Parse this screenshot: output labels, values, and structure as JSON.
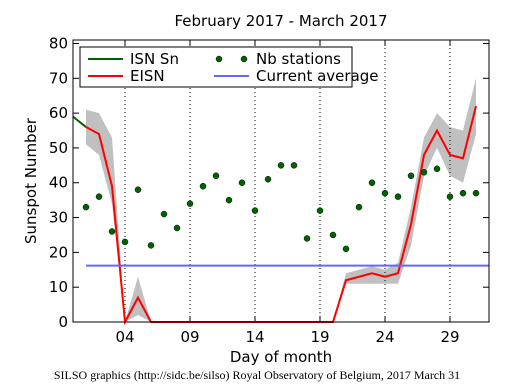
{
  "chart_data": {
    "type": "line",
    "title": "February 2017 - March 2017",
    "x_label": "Day of month",
    "y_label": "Sunspot Number",
    "footer": "SILSO graphics (http://sidc.be/silso) Royal Observatory of Belgium, 2017 March 31",
    "xlim": [
      0,
      32
    ],
    "ylim": [
      0,
      81
    ],
    "xticks": [
      {
        "value": 4,
        "label": "04"
      },
      {
        "value": 9,
        "label": "09"
      },
      14,
      19,
      24,
      29
    ],
    "yticks": [
      0,
      10,
      20,
      30,
      40,
      50,
      60,
      70,
      80
    ],
    "grid": "x",
    "legend": "upper left",
    "band": {
      "color": "#c0c0c0",
      "x": [
        1,
        2,
        3,
        4,
        5,
        6,
        7,
        8,
        9,
        10,
        11,
        12,
        13,
        14,
        15,
        16,
        17,
        18,
        19,
        20,
        21,
        22,
        23,
        24,
        25,
        26,
        27,
        28,
        29,
        30,
        31
      ],
      "low": [
        51,
        48,
        34,
        0,
        2,
        0,
        0,
        0,
        0,
        0,
        0,
        0,
        0,
        0,
        0,
        0,
        0,
        0,
        0,
        0,
        11,
        11,
        11,
        11,
        11,
        22,
        42,
        50,
        42,
        40,
        54
      ],
      "high": [
        61,
        60,
        53,
        0,
        13,
        0,
        0,
        0,
        0,
        0,
        0,
        0,
        0,
        0,
        0,
        0,
        0,
        0,
        0,
        0,
        14,
        15,
        16,
        15,
        17,
        33,
        53,
        60,
        56,
        55,
        70
      ]
    },
    "series": [
      {
        "name": "ISN Sn",
        "color": "#006400",
        "style": "line",
        "x": [
          0,
          1
        ],
        "values": [
          59,
          56
        ]
      },
      {
        "name": "EISN",
        "color": "#ff0000",
        "style": "line",
        "x": [
          1,
          2,
          3,
          4,
          5,
          6,
          7,
          8,
          9,
          10,
          11,
          12,
          13,
          14,
          15,
          16,
          17,
          18,
          19,
          20,
          21,
          22,
          23,
          24,
          25,
          26,
          27,
          28,
          29,
          30,
          31
        ],
        "values": [
          56,
          54,
          39,
          0,
          7,
          0,
          0,
          0,
          0,
          0,
          0,
          0,
          0,
          0,
          0,
          0,
          0,
          0,
          0,
          0,
          12,
          13,
          14,
          13,
          14,
          28,
          48,
          55,
          48,
          47,
          62
        ]
      },
      {
        "name": "Nb stations",
        "color": "#006400",
        "style": "dots",
        "x": [
          1,
          2,
          3,
          4,
          5,
          6,
          7,
          8,
          9,
          10,
          11,
          12,
          13,
          14,
          15,
          16,
          17,
          18,
          19,
          20,
          21,
          22,
          23,
          24,
          25,
          26,
          27,
          28,
          29,
          30,
          31
        ],
        "values": [
          33,
          36,
          26,
          23,
          38,
          22,
          31,
          27,
          34,
          39,
          42,
          35,
          40,
          32,
          41,
          45,
          45,
          24,
          32,
          25,
          21,
          33,
          40,
          37,
          36,
          42,
          43,
          44,
          36,
          37,
          37
        ]
      },
      {
        "name": "Current average",
        "color": "#6666ff",
        "style": "line",
        "x": [
          1,
          32
        ],
        "values": [
          16.2,
          16.2
        ]
      }
    ]
  }
}
